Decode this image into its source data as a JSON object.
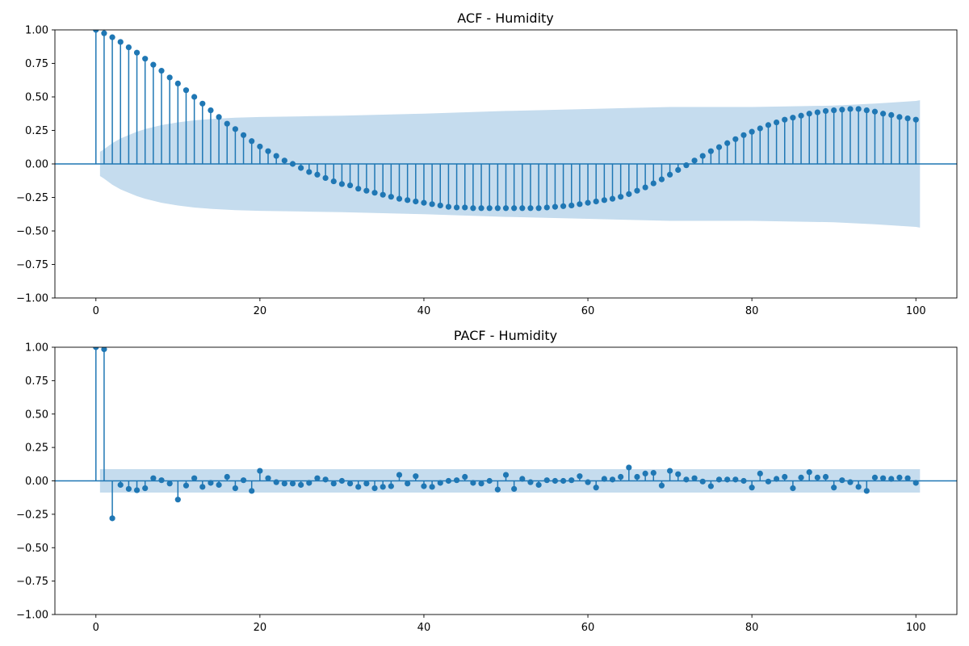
{
  "chart_data": [
    {
      "type": "stem",
      "title": "ACF - Humidity",
      "xlabel": "",
      "ylabel": "",
      "xlim": [
        -5,
        105
      ],
      "ylim": [
        -1.0,
        1.0
      ],
      "x_ticks": [
        "0",
        "20",
        "40",
        "60",
        "80",
        "100"
      ],
      "y_ticks": [
        "1.00",
        "0.75",
        "0.50",
        "0.25",
        "0.00",
        "−0.25",
        "−0.50",
        "−0.75",
        "−1.00"
      ],
      "grid": false,
      "color": "#1f77b4",
      "band_color": "#c5dcee",
      "lags": [
        0,
        1,
        2,
        3,
        4,
        5,
        6,
        7,
        8,
        9,
        10,
        11,
        12,
        13,
        14,
        15,
        16,
        17,
        18,
        19,
        20,
        21,
        22,
        23,
        24,
        25,
        26,
        27,
        28,
        29,
        30,
        31,
        32,
        33,
        34,
        35,
        36,
        37,
        38,
        39,
        40,
        41,
        42,
        43,
        44,
        45,
        46,
        47,
        48,
        49,
        50,
        51,
        52,
        53,
        54,
        55,
        56,
        57,
        58,
        59,
        60,
        61,
        62,
        63,
        64,
        65,
        66,
        67,
        68,
        69,
        70,
        71,
        72,
        73,
        74,
        75,
        76,
        77,
        78,
        79,
        80,
        81,
        82,
        83,
        84,
        85,
        86,
        87,
        88,
        89,
        90,
        91,
        92,
        93,
        94,
        95,
        96,
        97,
        98,
        99,
        100
      ],
      "values": [
        1.0,
        0.975,
        0.945,
        0.91,
        0.87,
        0.83,
        0.785,
        0.74,
        0.695,
        0.645,
        0.6,
        0.55,
        0.5,
        0.45,
        0.4,
        0.35,
        0.3,
        0.26,
        0.215,
        0.17,
        0.13,
        0.095,
        0.06,
        0.025,
        0.0,
        -0.03,
        -0.06,
        -0.08,
        -0.105,
        -0.13,
        -0.15,
        -0.16,
        -0.185,
        -0.2,
        -0.215,
        -0.23,
        -0.245,
        -0.26,
        -0.27,
        -0.28,
        -0.29,
        -0.3,
        -0.31,
        -0.32,
        -0.325,
        -0.325,
        -0.33,
        -0.33,
        -0.33,
        -0.33,
        -0.33,
        -0.33,
        -0.33,
        -0.33,
        -0.33,
        -0.325,
        -0.32,
        -0.315,
        -0.31,
        -0.3,
        -0.29,
        -0.28,
        -0.27,
        -0.26,
        -0.245,
        -0.225,
        -0.2,
        -0.175,
        -0.145,
        -0.115,
        -0.08,
        -0.045,
        -0.01,
        0.025,
        0.06,
        0.095,
        0.125,
        0.155,
        0.185,
        0.215,
        0.24,
        0.265,
        0.29,
        0.31,
        0.33,
        0.345,
        0.36,
        0.375,
        0.385,
        0.395,
        0.4,
        0.405,
        0.41,
        0.41,
        0.4,
        0.39,
        0.375,
        0.365,
        0.35,
        0.34,
        0.33
      ],
      "confidence_band": {
        "lags": [
          0.5,
          1,
          2,
          3,
          4,
          5,
          6,
          7,
          8,
          10,
          12,
          14,
          17,
          20,
          25,
          30,
          40,
          50,
          60,
          70,
          80,
          85,
          90,
          95,
          100,
          100.5
        ],
        "upper": [
          0.09,
          0.11,
          0.155,
          0.19,
          0.215,
          0.24,
          0.26,
          0.275,
          0.29,
          0.31,
          0.325,
          0.335,
          0.345,
          0.35,
          0.355,
          0.36,
          0.375,
          0.395,
          0.41,
          0.425,
          0.425,
          0.43,
          0.435,
          0.45,
          0.47,
          0.475
        ]
      }
    },
    {
      "type": "stem",
      "title": "PACF - Humidity",
      "xlabel": "",
      "ylabel": "",
      "xlim": [
        -5,
        105
      ],
      "ylim": [
        -1.0,
        1.0
      ],
      "x_ticks": [
        "0",
        "20",
        "40",
        "60",
        "80",
        "100"
      ],
      "y_ticks": [
        "1.00",
        "0.75",
        "0.50",
        "0.25",
        "0.00",
        "−0.25",
        "−0.50",
        "−0.75",
        "−1.00"
      ],
      "grid": false,
      "color": "#1f77b4",
      "band_color": "#c5dcee",
      "lags": [
        0,
        1,
        2,
        3,
        4,
        5,
        6,
        7,
        8,
        9,
        10,
        11,
        12,
        13,
        14,
        15,
        16,
        17,
        18,
        19,
        20,
        21,
        22,
        23,
        24,
        25,
        26,
        27,
        28,
        29,
        30,
        31,
        32,
        33,
        34,
        35,
        36,
        37,
        38,
        39,
        40,
        41,
        42,
        43,
        44,
        45,
        46,
        47,
        48,
        49,
        50,
        51,
        52,
        53,
        54,
        55,
        56,
        57,
        58,
        59,
        60,
        61,
        62,
        63,
        64,
        65,
        66,
        67,
        68,
        69,
        70,
        71,
        72,
        73,
        74,
        75,
        76,
        77,
        78,
        79,
        80,
        81,
        82,
        83,
        84,
        85,
        86,
        87,
        88,
        89,
        90,
        91,
        92,
        93,
        94,
        95,
        96,
        97,
        98,
        99,
        100
      ],
      "values": [
        1.0,
        0.985,
        -0.28,
        -0.03,
        -0.06,
        -0.07,
        -0.055,
        0.02,
        0.005,
        -0.02,
        -0.14,
        -0.035,
        0.02,
        -0.045,
        -0.015,
        -0.03,
        0.03,
        -0.055,
        0.005,
        -0.075,
        0.075,
        0.02,
        -0.01,
        -0.02,
        -0.02,
        -0.03,
        -0.015,
        0.02,
        0.01,
        -0.02,
        0.0,
        -0.02,
        -0.045,
        -0.02,
        -0.055,
        -0.045,
        -0.04,
        0.045,
        -0.02,
        0.035,
        -0.04,
        -0.045,
        -0.015,
        0.0,
        0.005,
        0.03,
        -0.015,
        -0.02,
        0.0,
        -0.065,
        0.045,
        -0.06,
        0.015,
        -0.01,
        -0.03,
        0.005,
        0.0,
        0.0,
        0.005,
        0.035,
        -0.01,
        -0.05,
        0.015,
        0.01,
        0.03,
        0.1,
        0.03,
        0.055,
        0.06,
        -0.035,
        0.075,
        0.05,
        0.01,
        0.02,
        -0.005,
        -0.04,
        0.01,
        0.01,
        0.01,
        0.0,
        -0.05,
        0.055,
        -0.005,
        0.015,
        0.03,
        -0.055,
        0.025,
        0.065,
        0.025,
        0.03,
        -0.05,
        0.005,
        -0.01,
        -0.045,
        -0.075,
        0.025,
        0.02,
        0.015,
        0.025,
        0.02,
        -0.015
      ],
      "confidence_band": {
        "lags": [
          0.5,
          100.5
        ],
        "upper": [
          0.088,
          0.088
        ]
      }
    }
  ]
}
